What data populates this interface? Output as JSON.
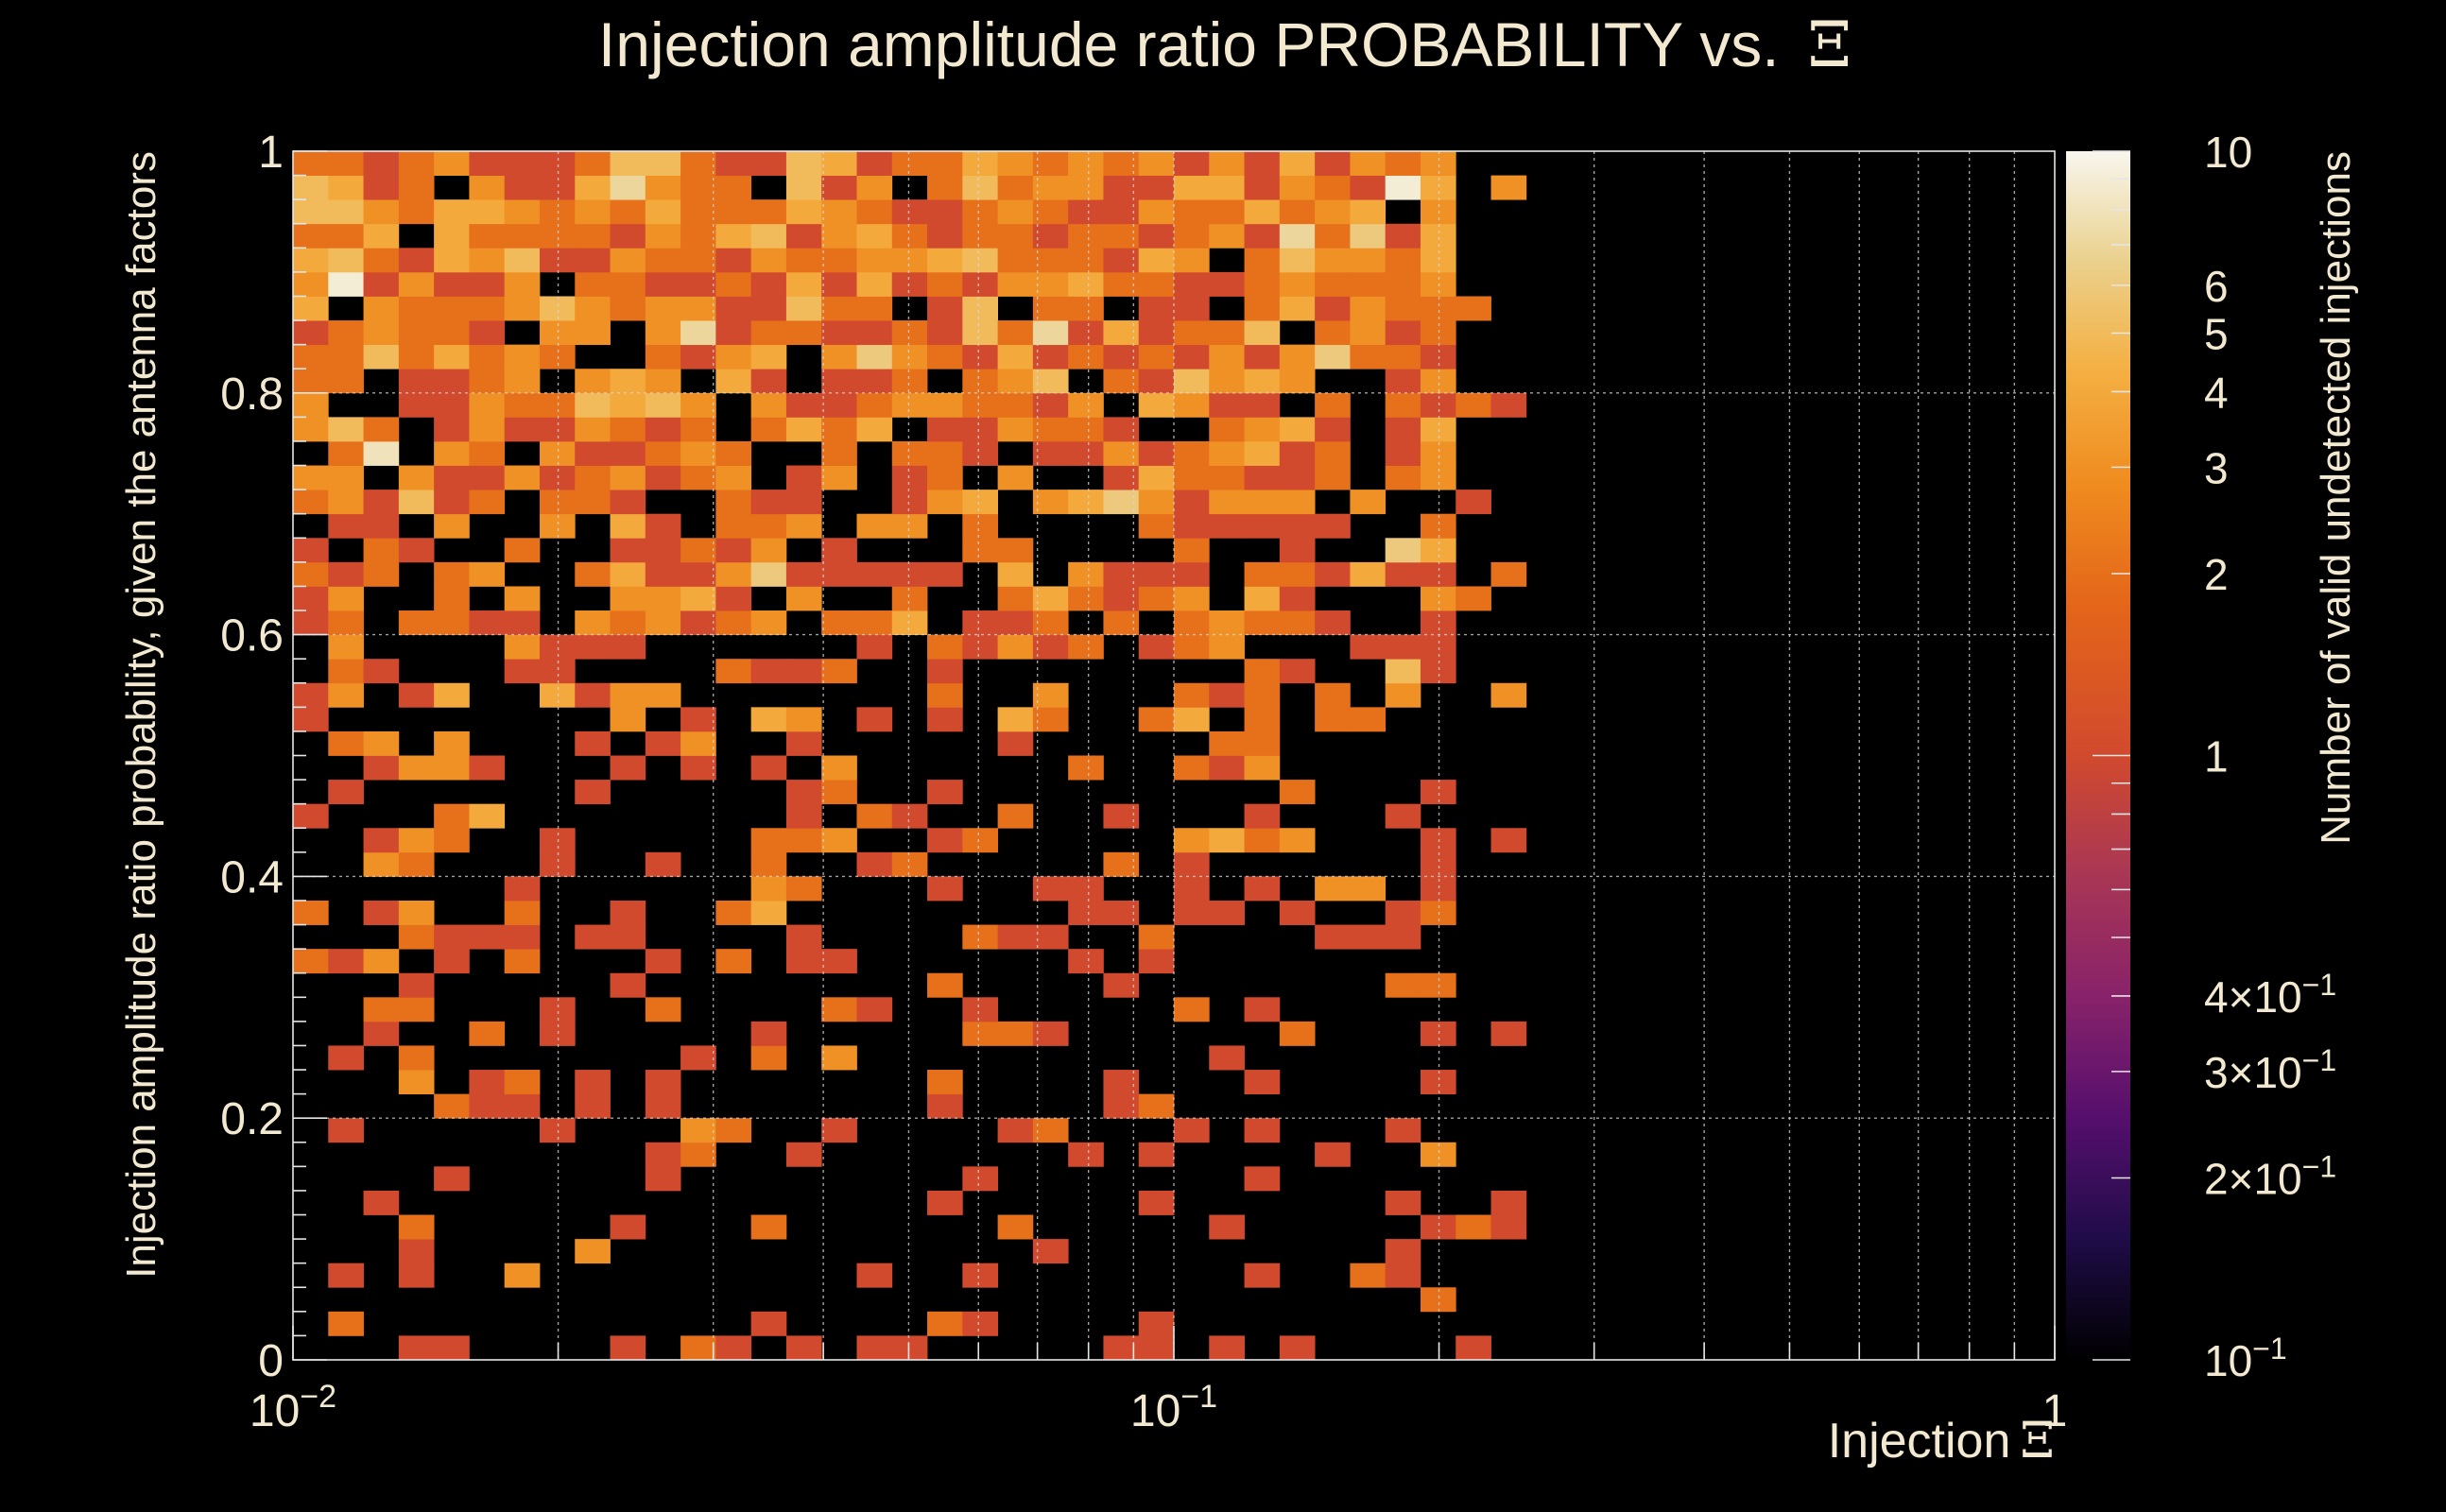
{
  "chart_data": {
    "type": "heatmap",
    "title": "Injection amplitude ratio PROBABILITY vs.",
    "title_symbol": "Ξ",
    "xlabel": "Injection",
    "xlabel_symbol": "Ξ",
    "ylabel": "Injection amplitude ratio probability, given the antenna factors",
    "zlabel": "Number of valid undetected injections",
    "x_scale": "log",
    "xlim": [
      0.01,
      1
    ],
    "ylim": [
      0,
      1
    ],
    "z_scale": "log",
    "zlim": [
      0.1,
      10
    ],
    "x_ticks": [
      {
        "value": 0.01,
        "base": "10",
        "exp": "−2"
      },
      {
        "value": 0.1,
        "base": "10",
        "exp": "−1"
      },
      {
        "value": 1,
        "base": "1",
        "exp": ""
      }
    ],
    "y_ticks": [
      {
        "value": 0,
        "label": "0"
      },
      {
        "value": 0.2,
        "label": "0.2"
      },
      {
        "value": 0.4,
        "label": "0.4"
      },
      {
        "value": 0.6,
        "label": "0.6"
      },
      {
        "value": 0.8,
        "label": "0.8"
      },
      {
        "value": 1,
        "label": "1"
      }
    ],
    "z_ticks": [
      {
        "value": 0.1,
        "mant": "10",
        "exp": "−1"
      },
      {
        "value": 0.2,
        "mant": "2×10",
        "exp": "−1"
      },
      {
        "value": 0.3,
        "mant": "3×10",
        "exp": "−1"
      },
      {
        "value": 0.4,
        "mant": "4×10",
        "exp": "−1"
      },
      {
        "value": 1,
        "mant": "1",
        "exp": ""
      },
      {
        "value": 2,
        "mant": "2",
        "exp": ""
      },
      {
        "value": 3,
        "mant": "3",
        "exp": ""
      },
      {
        "value": 4,
        "mant": "4",
        "exp": ""
      },
      {
        "value": 5,
        "mant": "5",
        "exp": ""
      },
      {
        "value": 6,
        "mant": "6",
        "exp": ""
      },
      {
        "value": 10,
        "mant": "10",
        "exp": ""
      }
    ],
    "binning": {
      "x_bins": 50,
      "y_bins": 50,
      "x_range": [
        0.01,
        1
      ],
      "y_range": [
        0,
        1
      ]
    },
    "populated_x_range": [
      0.01,
      0.25
    ],
    "colormap": [
      "#000000",
      "#1f0c48",
      "#550f6d",
      "#88226a",
      "#a83655",
      "#cb4b33",
      "#dd5316",
      "#e86a12",
      "#f3961f",
      "#f6b648",
      "#ebd08c",
      "#f5f3e8"
    ],
    "background_color": "#000000",
    "text_color": "#f2e9d0"
  }
}
